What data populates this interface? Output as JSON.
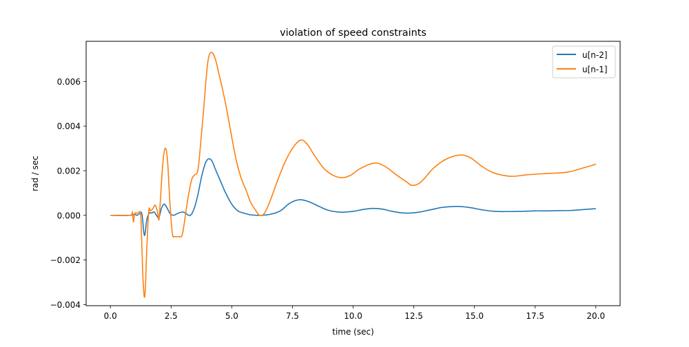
{
  "chart_data": {
    "type": "line",
    "title": "violation of speed constraints",
    "xlabel": "time (sec)",
    "ylabel": "rad / sec",
    "xlim": [
      -1.0,
      21.0
    ],
    "ylim": [
      -0.00405,
      0.0078
    ],
    "xticks": [
      0.0,
      2.5,
      5.0,
      7.5,
      10.0,
      12.5,
      15.0,
      17.5,
      20.0
    ],
    "xtick_labels": [
      "0.0",
      "2.5",
      "5.0",
      "7.5",
      "10.0",
      "12.5",
      "15.0",
      "17.5",
      "20.0"
    ],
    "yticks": [
      -0.004,
      -0.002,
      0.0,
      0.002,
      0.004,
      0.006
    ],
    "ytick_labels": [
      "−0.004",
      "−0.002",
      "0.000",
      "0.002",
      "0.004",
      "0.006"
    ],
    "grid": false,
    "legend_position": "upper right",
    "series": [
      {
        "name": "u[n-2]",
        "color": "#1f77b4",
        "x": [
          0.0,
          0.8,
          1.0,
          1.1,
          1.2,
          1.3,
          1.4,
          1.5,
          1.6,
          1.7,
          1.8,
          1.9,
          2.0,
          2.1,
          2.2,
          2.3,
          2.45,
          2.6,
          2.8,
          3.0,
          3.15,
          3.3,
          3.45,
          3.6,
          3.75,
          3.9,
          4.0,
          4.1,
          4.2,
          4.35,
          4.55,
          4.75,
          5.0,
          5.25,
          5.5,
          5.8,
          6.2,
          6.6,
          7.0,
          7.4,
          7.8,
          8.2,
          8.6,
          9.0,
          9.5,
          10.0,
          10.4,
          10.8,
          11.2,
          11.6,
          12.0,
          12.3,
          12.7,
          13.2,
          13.7,
          14.3,
          14.8,
          15.3,
          15.8,
          16.4,
          17.0,
          17.5,
          18.0,
          18.5,
          19.0,
          19.5,
          20.0
        ],
        "y": [
          0.0,
          0.0,
          5e-05,
          0.0,
          8e-05,
          5e-05,
          -0.0009,
          -0.0002,
          0.0001,
          0.0001,
          0.00015,
          0.0,
          -0.0001,
          0.0003,
          0.0005,
          0.0004,
          0.0001,
          0.0,
          0.0001,
          0.00015,
          5e-05,
          0.0,
          0.0003,
          0.0009,
          0.0017,
          0.0023,
          0.0025,
          0.00253,
          0.0024,
          0.002,
          0.0015,
          0.001,
          0.0005,
          0.0002,
          0.0001,
          2e-05,
          0.0,
          5e-05,
          0.0002,
          0.00055,
          0.0007,
          0.0006,
          0.0004,
          0.00022,
          0.00014,
          0.00018,
          0.00026,
          0.00031,
          0.00028,
          0.00018,
          0.00011,
          0.0001,
          0.00014,
          0.00025,
          0.00036,
          0.0004,
          0.00035,
          0.00025,
          0.00018,
          0.00017,
          0.00018,
          0.0002,
          0.0002,
          0.00021,
          0.00022,
          0.00026,
          0.0003
        ]
      },
      {
        "name": "u[n-1]",
        "color": "#ff7f0e",
        "x": [
          0.0,
          0.8,
          0.9,
          0.95,
          1.0,
          1.1,
          1.2,
          1.25,
          1.3,
          1.35,
          1.42,
          1.5,
          1.58,
          1.65,
          1.75,
          1.85,
          1.95,
          2.0,
          2.05,
          2.15,
          2.25,
          2.35,
          2.45,
          2.55,
          2.65,
          2.8,
          2.95,
          3.05,
          3.2,
          3.35,
          3.46,
          3.6,
          3.7,
          3.83,
          3.95,
          4.05,
          4.2,
          4.35,
          4.5,
          4.63,
          4.8,
          5.0,
          5.2,
          5.39,
          5.6,
          5.77,
          6.0,
          6.15,
          6.35,
          6.6,
          6.9,
          7.2,
          7.5,
          7.83,
          8.1,
          8.4,
          8.8,
          9.2,
          9.56,
          9.9,
          10.3,
          10.87,
          11.3,
          11.8,
          12.2,
          12.45,
          12.8,
          13.3,
          13.8,
          14.35,
          14.8,
          15.3,
          15.8,
          16.5,
          17.2,
          17.87,
          18.8,
          19.4,
          20.0
        ],
        "y": [
          0.0,
          0.0,
          0.00015,
          -0.0003,
          8e-05,
          0.0001,
          0.00015,
          0.0,
          -0.0015,
          -0.003,
          -0.0036,
          -0.0015,
          0.0002,
          0.0002,
          0.0003,
          0.00045,
          0.0001,
          -0.0002,
          0.0005,
          0.0022,
          0.003,
          0.0025,
          0.0006,
          -0.0008,
          -0.00095,
          -0.00095,
          -0.0009,
          -0.0003,
          0.0008,
          0.0016,
          0.0018,
          0.002,
          0.003,
          0.0046,
          0.0062,
          0.0071,
          0.00729,
          0.0069,
          0.0062,
          0.0056,
          0.0047,
          0.0035,
          0.0024,
          0.00166,
          0.0011,
          0.0006,
          0.0002,
          0.0,
          0.0001,
          0.0007,
          0.0016,
          0.0024,
          0.003,
          0.00337,
          0.0032,
          0.0027,
          0.0021,
          0.00178,
          0.00169,
          0.0018,
          0.0021,
          0.00234,
          0.0022,
          0.0018,
          0.0015,
          0.00134,
          0.0015,
          0.0021,
          0.0025,
          0.0027,
          0.0026,
          0.0022,
          0.0019,
          0.00175,
          0.00182,
          0.00187,
          0.00193,
          0.0021,
          0.00229
        ]
      }
    ]
  }
}
